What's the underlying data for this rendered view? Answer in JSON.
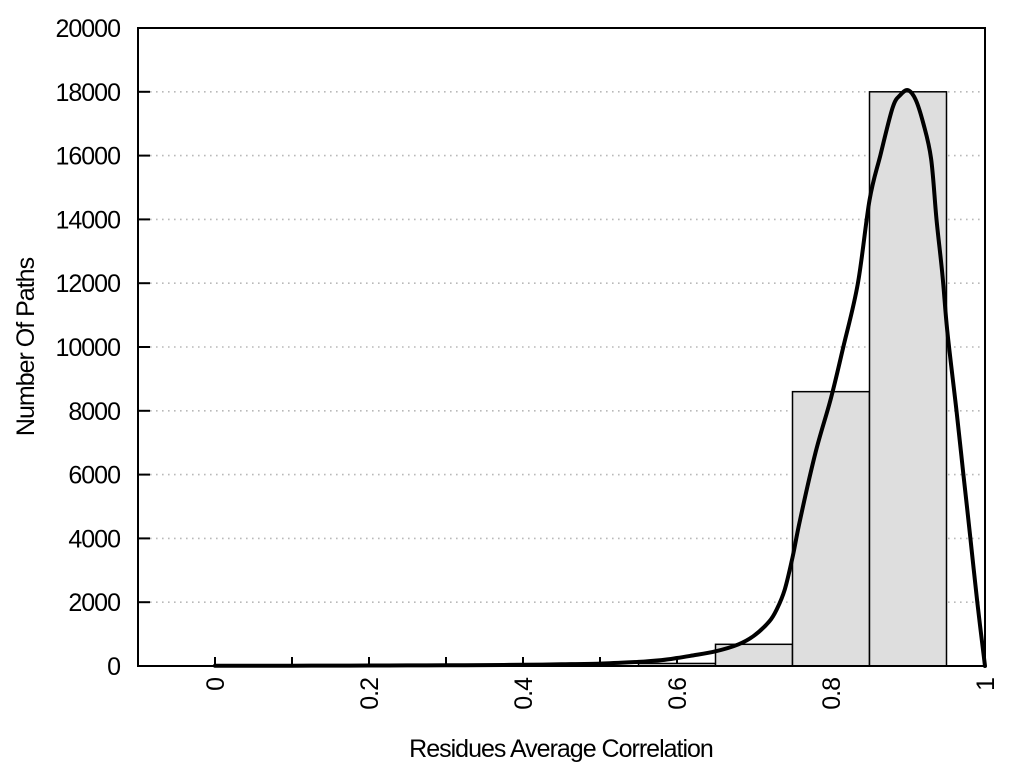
{
  "chart_data": {
    "type": "bar",
    "subtype": "histogram-with-density-curve",
    "title": "",
    "xlabel": "Residues Average Correlation",
    "ylabel": "Number Of Paths",
    "xlim": [
      -0.1,
      1.0
    ],
    "ylim": [
      0,
      20000
    ],
    "grid": "horizontal-dotted",
    "legend": "none",
    "x_major_ticks": [
      0,
      0.2,
      0.4,
      0.6,
      0.8,
      1
    ],
    "x_major_tick_labels": [
      "0",
      "0.2",
      "0.4",
      "0.6",
      "0.8",
      "1"
    ],
    "x_tick_label_rotation_deg": -90,
    "x_minor_ticks": [
      0,
      0.1,
      0.2,
      0.3,
      0.4,
      0.5,
      0.6,
      0.7,
      0.8,
      0.9,
      1.0
    ],
    "y_ticks": [
      0,
      2000,
      4000,
      6000,
      8000,
      10000,
      12000,
      14000,
      16000,
      18000,
      20000
    ],
    "y_tick_labels": [
      "0",
      "2000",
      "4000",
      "6000",
      "8000",
      "10000",
      "12000",
      "14000",
      "16000",
      "18000",
      "20000"
    ],
    "bars": [
      {
        "x0": 0.55,
        "x1": 0.65,
        "count": 80
      },
      {
        "x0": 0.65,
        "x1": 0.75,
        "count": 680
      },
      {
        "x0": 0.75,
        "x1": 0.85,
        "count": 8600
      },
      {
        "x0": 0.85,
        "x1": 0.95,
        "count": 18000
      }
    ],
    "curve": [
      [
        0.0,
        10
      ],
      [
        0.05,
        10
      ],
      [
        0.1,
        10
      ],
      [
        0.15,
        12
      ],
      [
        0.2,
        15
      ],
      [
        0.25,
        18
      ],
      [
        0.3,
        22
      ],
      [
        0.35,
        28
      ],
      [
        0.4,
        38
      ],
      [
        0.45,
        52
      ],
      [
        0.5,
        75
      ],
      [
        0.55,
        130
      ],
      [
        0.58,
        185
      ],
      [
        0.6,
        250
      ],
      [
        0.62,
        330
      ],
      [
        0.65,
        460
      ],
      [
        0.68,
        680
      ],
      [
        0.7,
        950
      ],
      [
        0.72,
        1400
      ],
      [
        0.73,
        1800
      ],
      [
        0.74,
        2400
      ],
      [
        0.75,
        3400
      ],
      [
        0.76,
        4600
      ],
      [
        0.78,
        6700
      ],
      [
        0.8,
        8400
      ],
      [
        0.816,
        10000
      ],
      [
        0.835,
        12000
      ],
      [
        0.85,
        14600
      ],
      [
        0.864,
        16000
      ],
      [
        0.88,
        17500
      ],
      [
        0.89,
        17900
      ],
      [
        0.9,
        18050
      ],
      [
        0.91,
        17750
      ],
      [
        0.92,
        17000
      ],
      [
        0.93,
        15900
      ],
      [
        0.937,
        14000
      ],
      [
        0.945,
        12200
      ],
      [
        0.951,
        10500
      ],
      [
        0.963,
        8000
      ],
      [
        0.972,
        6000
      ],
      [
        0.981,
        4000
      ],
      [
        0.99,
        2000
      ],
      [
        1.0,
        0
      ]
    ],
    "colors": {
      "background": "#ffffff",
      "bar_fill": "#dedede",
      "bar_stroke": "#000000",
      "curve": "#000000",
      "grid": "#b9b9b9",
      "axis": "#000000",
      "text": "#000000"
    }
  }
}
